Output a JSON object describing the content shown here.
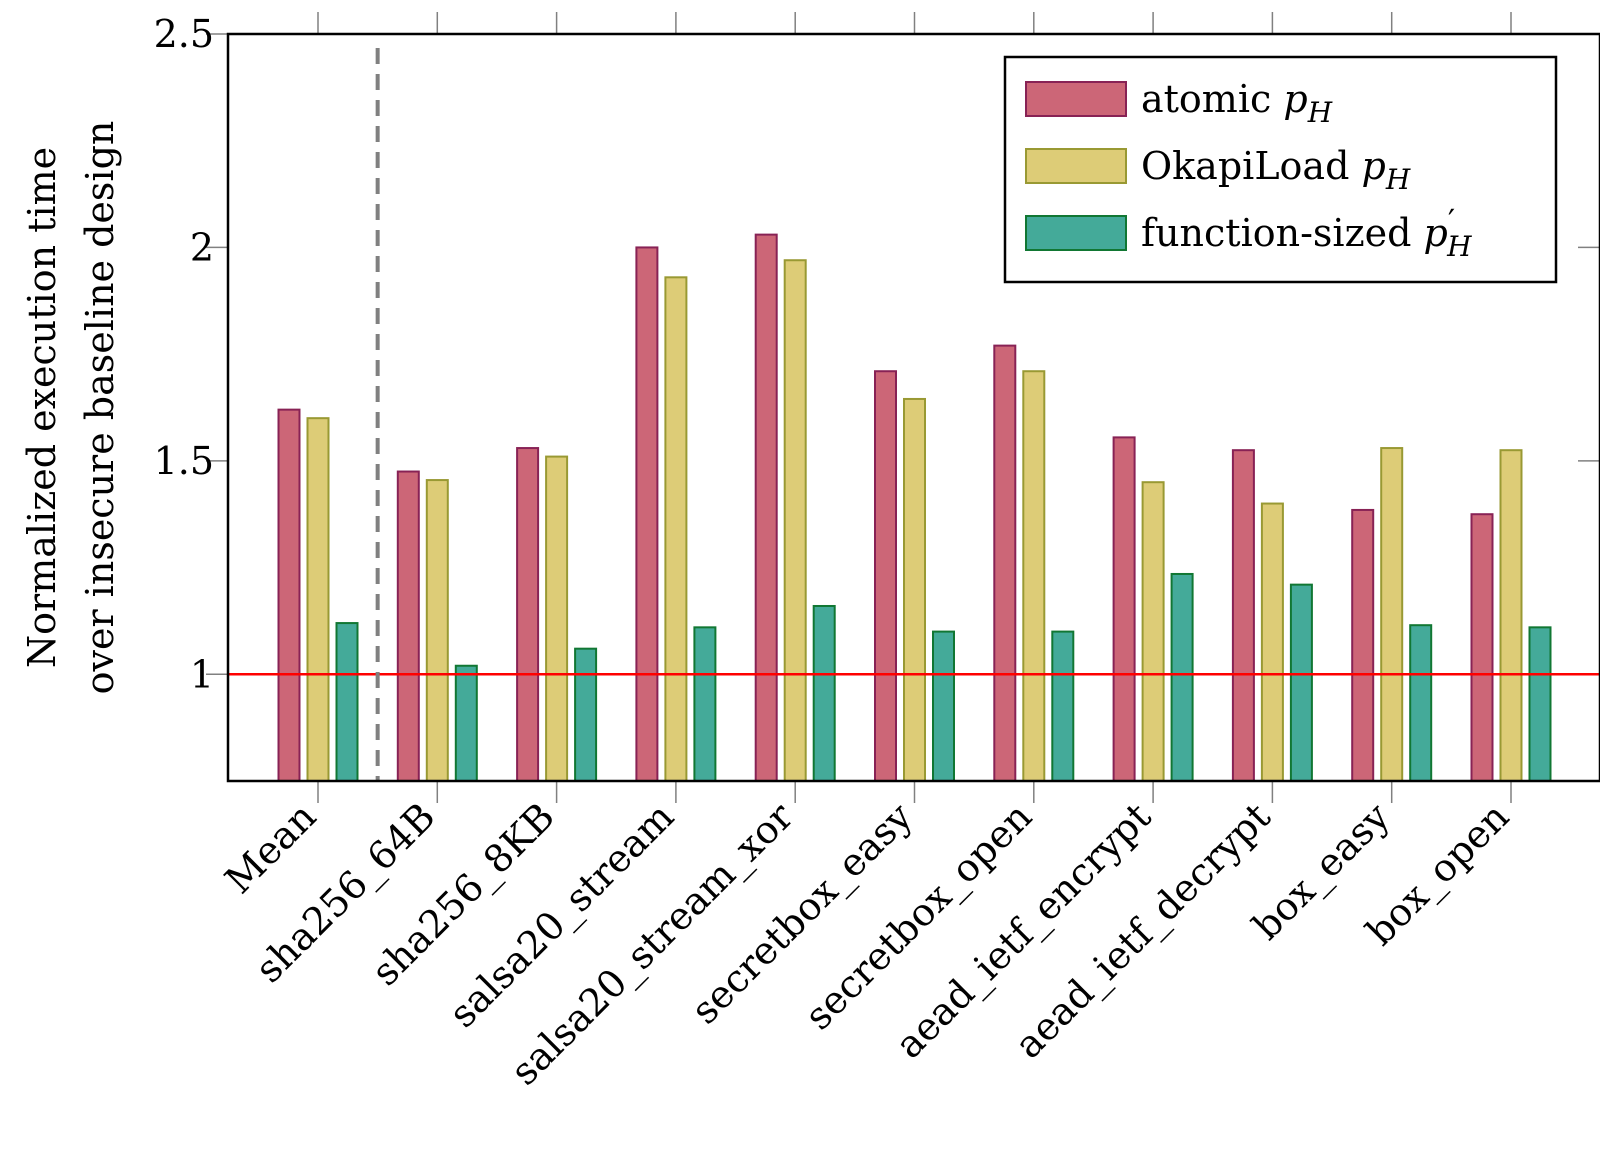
{
  "chart_data": {
    "type": "bar",
    "title": "",
    "xlabel": "",
    "ylabel_lines": [
      "Normalized execution time",
      "over insecure baseline design"
    ],
    "ylim": [
      0.75,
      2.5
    ],
    "yticks": [
      1,
      1.5,
      2,
      2.5
    ],
    "ytick_labels": [
      "1",
      "1.5",
      "2",
      "2.5"
    ],
    "reference_line": {
      "y": 1,
      "color": "#ff0000"
    },
    "separator_after_category": "Mean",
    "legend_position": "top-right",
    "categories": [
      "Mean",
      "sha256_64B",
      "sha256_8KB",
      "salsa20_stream",
      "salsa20_stream_xor",
      "secretbox_easy",
      "secretbox_open",
      "aead_ietf_encrypt",
      "aead_ietf_decrypt",
      "box_easy",
      "box_open"
    ],
    "series": [
      {
        "name": "atomic pH",
        "legend_text": "atomic ",
        "legend_math": "p",
        "legend_sub": "H",
        "legend_prime": "",
        "fill": "#cc6677",
        "stroke": "#882255",
        "values": [
          1.62,
          1.475,
          1.53,
          2.0,
          2.03,
          1.71,
          1.77,
          1.555,
          1.525,
          1.385,
          1.375
        ]
      },
      {
        "name": "OkapiLoad pH",
        "legend_text": "OkapiLoad ",
        "legend_math": "p",
        "legend_sub": "H",
        "legend_prime": "",
        "fill": "#ddcc77",
        "stroke": "#999933",
        "values": [
          1.6,
          1.455,
          1.51,
          1.93,
          1.97,
          1.645,
          1.71,
          1.45,
          1.4,
          1.53,
          1.525
        ]
      },
      {
        "name": "function-sized p'H",
        "legend_text": "function-sized ",
        "legend_math": "p",
        "legend_sub": "H",
        "legend_prime": "′",
        "fill": "#44aa99",
        "stroke": "#117733",
        "values": [
          1.12,
          1.02,
          1.06,
          1.11,
          1.16,
          1.1,
          1.1,
          1.235,
          1.21,
          1.115,
          1.11
        ]
      }
    ]
  }
}
